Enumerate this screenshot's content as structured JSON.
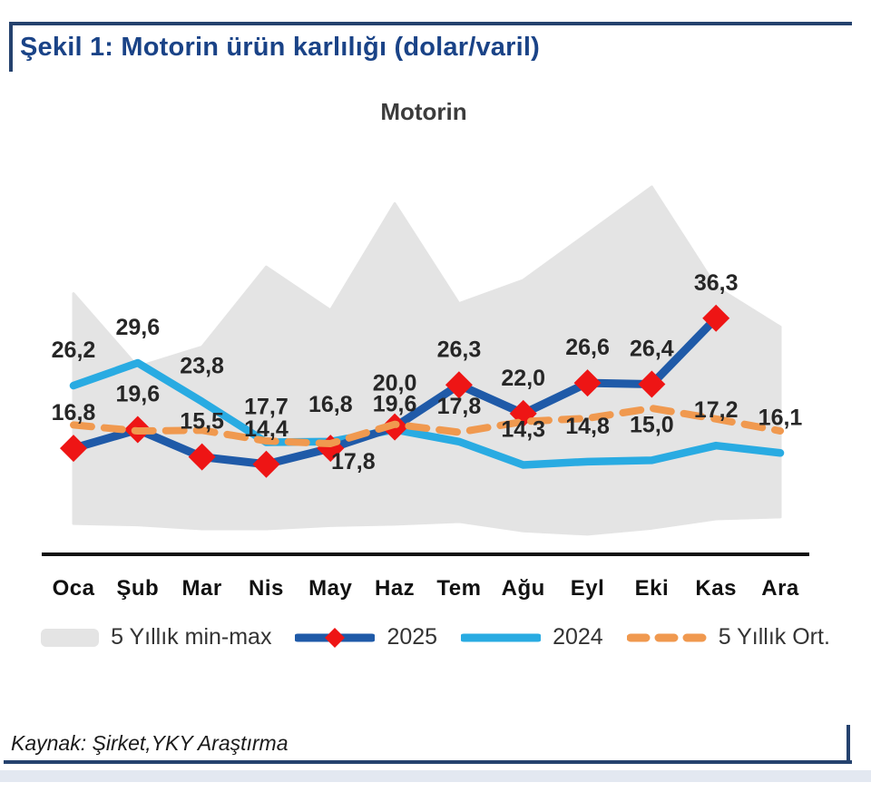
{
  "figure": {
    "title": "Şekil 1: Motorin ürün karlılığı (dolar/varil)",
    "source": "Kaynak: Şirket,YKY Araştırma",
    "accent_color": "#25426e"
  },
  "chart_data": {
    "type": "line",
    "title": "Motorin",
    "unit": "dolar/varil",
    "grid": false,
    "legend_position": "bottom",
    "ylim": [
      0,
      60
    ],
    "categories": [
      "Oca",
      "Şub",
      "Mar",
      "Nis",
      "May",
      "Haz",
      "Tem",
      "Ağu",
      "Eyl",
      "Eki",
      "Kas",
      "Ara"
    ],
    "series": [
      {
        "name": "5 Yıllık min-max",
        "type": "band",
        "color": "#e4e4e4",
        "max": [
          40,
          29,
          32,
          44,
          37.5,
          53.5,
          38.5,
          42,
          49,
          56,
          41,
          35
        ],
        "min": [
          5.5,
          5.3,
          4.7,
          4.7,
          5.2,
          5.4,
          5.8,
          4.4,
          3.9,
          4.8,
          6.2,
          6.5
        ]
      },
      {
        "name": "2025",
        "type": "line",
        "color": "#1f5aa8",
        "marker": "diamond",
        "marker_color": "#ee1515",
        "values": [
          16.8,
          19.6,
          15.5,
          14.4,
          16.8,
          20.0,
          26.3,
          22.0,
          26.6,
          26.4,
          36.3,
          null
        ],
        "labels": [
          "16,8",
          "19,6",
          "15,5",
          "14,4",
          "16,8",
          "20,0",
          "26,3",
          "22,0",
          "26,6",
          "26,4",
          "36,3",
          null
        ]
      },
      {
        "name": "2024",
        "type": "line",
        "color": "#29abe2",
        "values": [
          26.2,
          29.6,
          23.8,
          17.7,
          17.8,
          19.6,
          17.8,
          14.3,
          14.8,
          15.0,
          17.2,
          16.1
        ],
        "labels": [
          "26,2",
          "29,6",
          "23,8",
          "17,7",
          "17,8",
          "19,6",
          "17,8",
          "14,3",
          "14,8",
          "15,0",
          "17,2",
          "16,1"
        ]
      },
      {
        "name": "5 Yıllık Ort.",
        "type": "dashed-line",
        "color": "#f0994f",
        "values": [
          20.3,
          19.4,
          19.5,
          17.9,
          17.5,
          20.4,
          19.2,
          20.8,
          21.3,
          22.8,
          21.2,
          19.4
        ],
        "labels": null
      }
    ]
  }
}
